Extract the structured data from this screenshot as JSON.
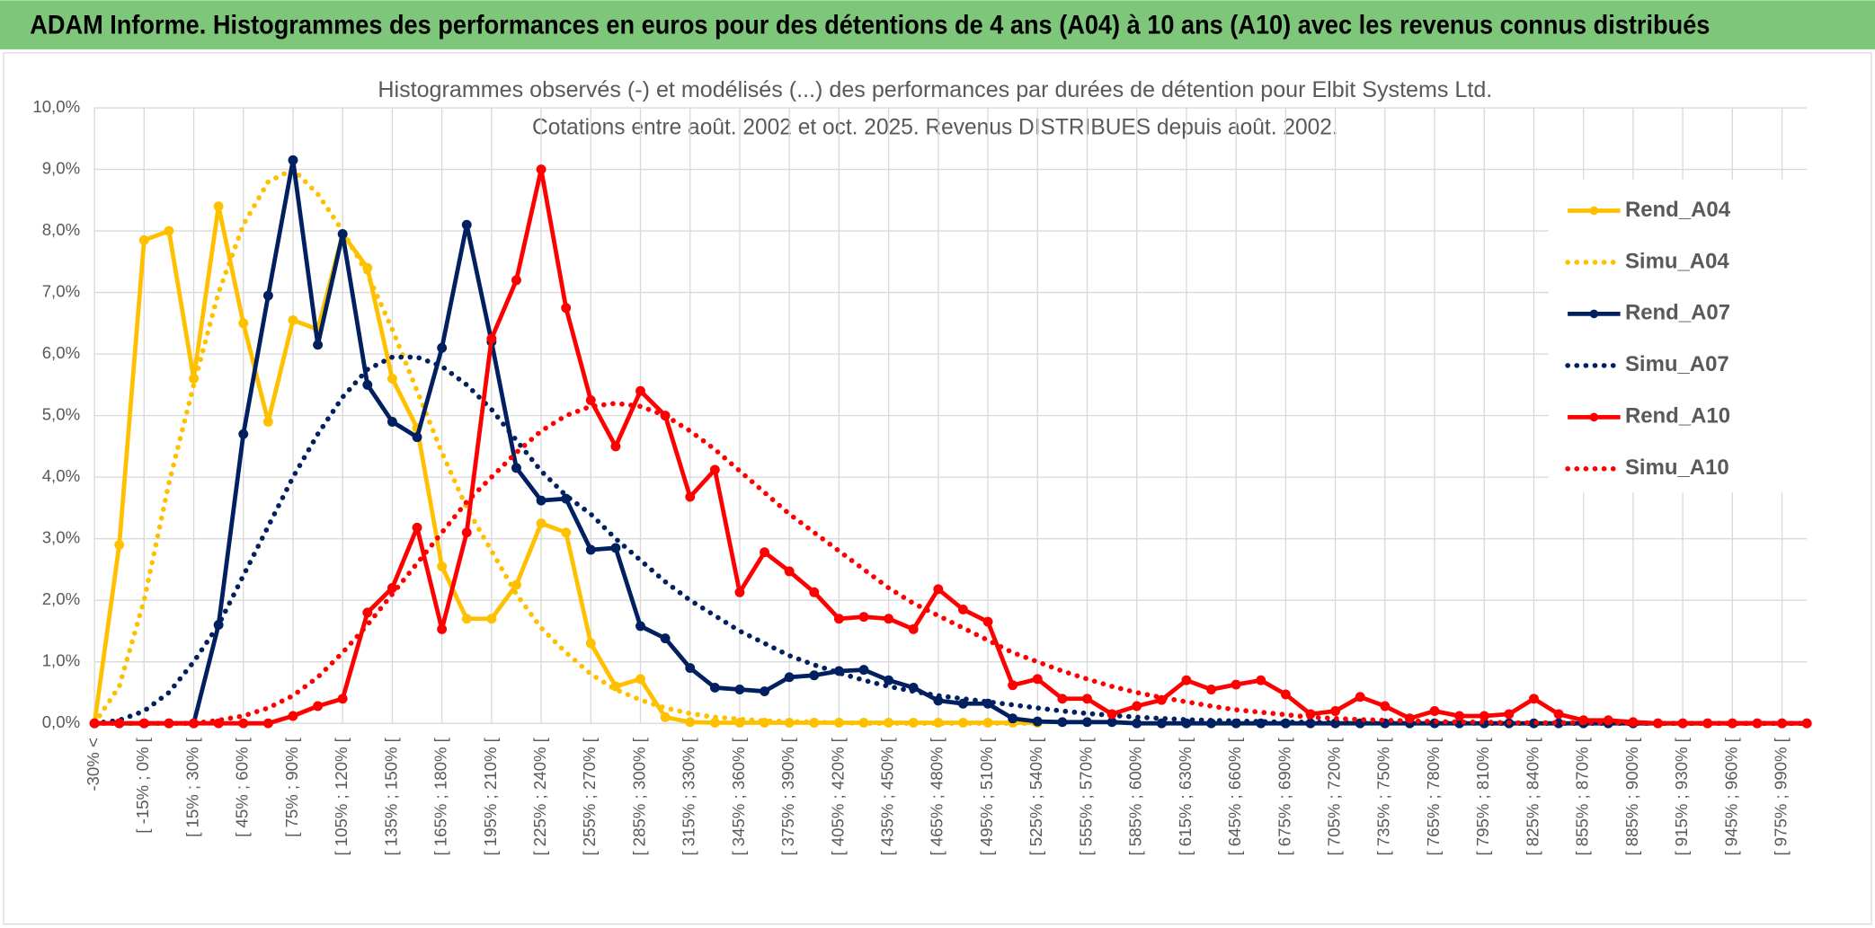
{
  "header": {
    "title": "ADAM Informe. Histogrammes des performances en euros pour des détentions de 4 ans (A04) à 10 ans (A10) avec les revenus connus distribués"
  },
  "chart_data": {
    "type": "line",
    "title": "Histogrammes observés (-) et modélisés (...) des performances par durées de détention pour Elbit Systems Ltd.",
    "subtitle": "Cotations entre août. 2002 et oct. 2025. Revenus DISTRIBUES depuis août. 2002.",
    "categories": [
      "-30% <",
      null,
      "[ -15% ; 0% [",
      null,
      "[ 15% ; 30% [",
      null,
      "[ 45% ; 60% [",
      null,
      "[ 75% ; 90% [",
      null,
      "[ 105% ; 120% [",
      null,
      "[ 135% ; 150% [",
      null,
      "[ 165% ; 180% [",
      null,
      "[ 195% ; 210% [",
      null,
      "[ 225% ; 240% [",
      null,
      "[ 255% ; 270% [",
      null,
      "[ 285% ; 300% [",
      null,
      "[ 315% ; 330% [",
      null,
      "[ 345% ; 360% [",
      null,
      "[ 375% ; 390% [",
      null,
      "[ 405% ; 420% [",
      null,
      "[ 435% ; 450% [",
      null,
      "[ 465% ; 480% [",
      null,
      "[ 495% ; 510% [",
      null,
      "[ 525% ; 540% [",
      null,
      "[ 555% ; 570% [",
      null,
      "[ 585% ; 600% [",
      null,
      "[ 615% ; 630% [",
      null,
      "[ 645% ; 660% [",
      null,
      "[ 675% ; 690% [",
      null,
      "[ 705% ; 720% [",
      null,
      "[ 735% ; 750% [",
      null,
      "[ 765% ; 780% [",
      null,
      "[ 795% ; 810% [",
      null,
      "[ 825% ; 840% [",
      null,
      "[ 855% ; 870% [",
      null,
      "[ 885% ; 900% [",
      null,
      "[ 915% ; 930% [",
      null,
      "[ 945% ; 960% [",
      null,
      "[ 975% ; 990% [",
      null
    ],
    "series": [
      {
        "name": "Rend_A04",
        "color": "#FFC000",
        "style": "solid",
        "markers": true,
        "values": [
          0,
          2.9,
          7.85,
          8.0,
          5.6,
          8.4,
          6.5,
          4.9,
          6.55,
          6.4,
          7.95,
          7.4,
          5.6,
          4.8,
          2.55,
          1.7,
          1.7,
          2.25,
          3.25,
          3.1,
          1.3,
          0.6,
          0.72,
          0.1,
          0.02,
          0.01,
          0.01,
          0.01,
          0.01,
          0.01,
          0.01,
          0.01,
          0.01,
          0.01,
          0.01,
          0.01,
          0.01,
          0.01,
          0.01,
          null,
          null,
          null,
          null,
          null,
          null,
          null,
          null,
          null,
          null,
          null,
          null,
          null,
          null,
          null,
          null,
          null,
          null,
          null,
          null,
          null,
          null,
          null,
          null,
          null,
          null,
          null,
          null,
          null,
          null,
          null
        ]
      },
      {
        "name": "Simu_A04",
        "color": "#FFC000",
        "style": "dotted",
        "markers": false,
        "values": [
          0,
          0.6,
          2.0,
          3.9,
          5.5,
          7.0,
          8.1,
          8.8,
          9.0,
          8.6,
          8.0,
          7.3,
          6.4,
          5.4,
          4.4,
          3.5,
          2.8,
          2.1,
          1.55,
          1.15,
          0.8,
          0.55,
          0.38,
          0.25,
          0.16,
          0.1,
          0.07,
          0.04,
          0.03,
          0.02,
          0.01,
          0,
          0,
          0,
          0,
          0,
          0,
          0,
          0,
          null,
          null,
          null,
          null,
          null,
          null,
          null,
          null,
          null,
          null,
          null,
          null,
          null,
          null,
          null,
          null,
          null,
          null,
          null,
          null,
          null,
          null,
          null,
          null,
          null,
          null,
          null,
          null,
          null,
          null,
          null
        ]
      },
      {
        "name": "Rend_A07",
        "color": "#002060",
        "style": "solid",
        "markers": true,
        "values": [
          0,
          0,
          0,
          0,
          0,
          1.6,
          4.7,
          6.95,
          9.15,
          6.15,
          7.95,
          5.5,
          4.9,
          4.65,
          6.1,
          8.1,
          6.2,
          4.15,
          3.62,
          3.65,
          2.82,
          2.85,
          1.58,
          1.38,
          0.9,
          0.58,
          0.55,
          0.52,
          0.75,
          0.78,
          0.85,
          0.87,
          0.7,
          0.58,
          0.37,
          0.32,
          0.32,
          0.08,
          0.03,
          0.02,
          0.02,
          0.02,
          0,
          0,
          0,
          0,
          0,
          0,
          0,
          0,
          0,
          0,
          0,
          0,
          0,
          0,
          0,
          0,
          0,
          0,
          0,
          0,
          0,
          0,
          0,
          0,
          0,
          0,
          0,
          0
        ]
      },
      {
        "name": "Simu_A07",
        "color": "#002060",
        "style": "dotted",
        "markers": false,
        "values": [
          0,
          0.05,
          0.2,
          0.5,
          1.0,
          1.6,
          2.4,
          3.2,
          4.0,
          4.7,
          5.3,
          5.75,
          5.95,
          5.95,
          5.8,
          5.5,
          5.1,
          4.6,
          4.1,
          3.7,
          3.4,
          3.0,
          2.65,
          2.3,
          2.0,
          1.75,
          1.5,
          1.3,
          1.1,
          0.95,
          0.82,
          0.7,
          0.6,
          0.52,
          0.45,
          0.4,
          0.35,
          0.3,
          0.25,
          0.2,
          0.16,
          0.13,
          0.1,
          0.08,
          0.06,
          0.05,
          0.04,
          0.03,
          0.02,
          0.02,
          0.01,
          0.01,
          0.01,
          0.01,
          0.01,
          0.01,
          0,
          0,
          0,
          0,
          0,
          0,
          0,
          0,
          0,
          0,
          0,
          0,
          0,
          0
        ]
      },
      {
        "name": "Rend_A10",
        "color": "#FF0000",
        "style": "solid",
        "markers": true,
        "values": [
          0,
          0,
          0,
          0,
          0,
          0,
          0,
          0,
          0.12,
          0.28,
          0.4,
          1.8,
          2.2,
          3.18,
          1.53,
          3.1,
          6.25,
          7.2,
          9.0,
          6.75,
          5.25,
          4.5,
          5.4,
          5.0,
          3.68,
          4.12,
          2.13,
          2.78,
          2.47,
          2.13,
          1.7,
          1.73,
          1.7,
          1.53,
          2.18,
          1.85,
          1.65,
          0.62,
          0.72,
          0.4,
          0.4,
          0.15,
          0.28,
          0.38,
          0.7,
          0.55,
          0.63,
          0.7,
          0.47,
          0.15,
          0.2,
          0.43,
          0.28,
          0.08,
          0.2,
          0.12,
          0.12,
          0.15,
          0.4,
          0.15,
          0.05,
          0.05,
          0.02,
          0,
          0,
          0,
          0,
          0,
          0,
          0
        ]
      },
      {
        "name": "Simu_A10",
        "color": "#FF0000",
        "style": "dotted",
        "markers": false,
        "values": [
          0,
          0,
          0,
          0,
          0,
          0.05,
          0.12,
          0.25,
          0.45,
          0.75,
          1.15,
          1.6,
          2.1,
          2.6,
          3.1,
          3.6,
          4.0,
          4.4,
          4.75,
          5.0,
          5.15,
          5.2,
          5.15,
          5.0,
          4.75,
          4.45,
          4.1,
          3.75,
          3.4,
          3.1,
          2.8,
          2.5,
          2.2,
          1.95,
          1.75,
          1.55,
          1.35,
          1.15,
          1.0,
          0.85,
          0.72,
          0.6,
          0.5,
          0.42,
          0.35,
          0.28,
          0.22,
          0.18,
          0.14,
          0.1,
          0.08,
          0.06,
          0.05,
          0.04,
          0.03,
          0.02,
          0.02,
          0.01,
          0.01,
          0.01,
          0.01,
          0.01,
          0,
          0,
          0,
          0,
          0,
          0,
          0,
          0
        ]
      }
    ],
    "ylim": [
      0,
      10
    ],
    "yticks": [
      {
        "value": 0,
        "label": "0,0%"
      },
      {
        "value": 1,
        "label": "1,0%"
      },
      {
        "value": 2,
        "label": "2,0%"
      },
      {
        "value": 3,
        "label": "3,0%"
      },
      {
        "value": 4,
        "label": "4,0%"
      },
      {
        "value": 5,
        "label": "5,0%"
      },
      {
        "value": 6,
        "label": "6,0%"
      },
      {
        "value": 7,
        "label": "7,0%"
      },
      {
        "value": 8,
        "label": "8,0%"
      },
      {
        "value": 9,
        "label": "9,0%"
      },
      {
        "value": 10,
        "label": "10,0%"
      }
    ],
    "grid": true,
    "legend": "right"
  }
}
